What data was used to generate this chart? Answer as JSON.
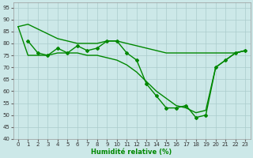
{
  "title": "",
  "xlabel": "Humidité relative (%)",
  "ylabel": "",
  "background_color": "#cce8e8",
  "grid_color": "#aacccc",
  "line_color": "#008800",
  "xlim": [
    -0.5,
    23.5
  ],
  "ylim": [
    40,
    97
  ],
  "yticks": [
    40,
    45,
    50,
    55,
    60,
    65,
    70,
    75,
    80,
    85,
    90,
    95
  ],
  "xticks": [
    0,
    1,
    2,
    3,
    4,
    5,
    6,
    7,
    8,
    9,
    10,
    11,
    12,
    13,
    14,
    15,
    16,
    17,
    18,
    19,
    20,
    21,
    22,
    23
  ],
  "series1_x": [
    0,
    1,
    2,
    3,
    4,
    5,
    6,
    7,
    8,
    9,
    10,
    11,
    12,
    13,
    14,
    15,
    16,
    17,
    18,
    19,
    20,
    21,
    22,
    23
  ],
  "series1_y": [
    87,
    88,
    86,
    84,
    82,
    81,
    80,
    80,
    80,
    81,
    81,
    80,
    79,
    78,
    77,
    76,
    76,
    76,
    76,
    76,
    76,
    76,
    76,
    77
  ],
  "series2_x": [
    1,
    2,
    3,
    4,
    5,
    6,
    7,
    8,
    9,
    10,
    11,
    12,
    13,
    14,
    15,
    16,
    17,
    18,
    19,
    20,
    21,
    22,
    23
  ],
  "series2_y": [
    81,
    76,
    75,
    78,
    76,
    79,
    77,
    78,
    81,
    81,
    76,
    73,
    63,
    58,
    53,
    53,
    54,
    49,
    50,
    70,
    73,
    76,
    77
  ],
  "series3_x": [
    0,
    1,
    2,
    3,
    4,
    5,
    6,
    7,
    8,
    9,
    10,
    11,
    12,
    13,
    14,
    15,
    16,
    17,
    18,
    19,
    20,
    21,
    22,
    23
  ],
  "series3_y": [
    87,
    75,
    75,
    75,
    76,
    76,
    76,
    75,
    75,
    74,
    73,
    71,
    68,
    64,
    60,
    57,
    54,
    53,
    51,
    52,
    70,
    73,
    76,
    77
  ]
}
